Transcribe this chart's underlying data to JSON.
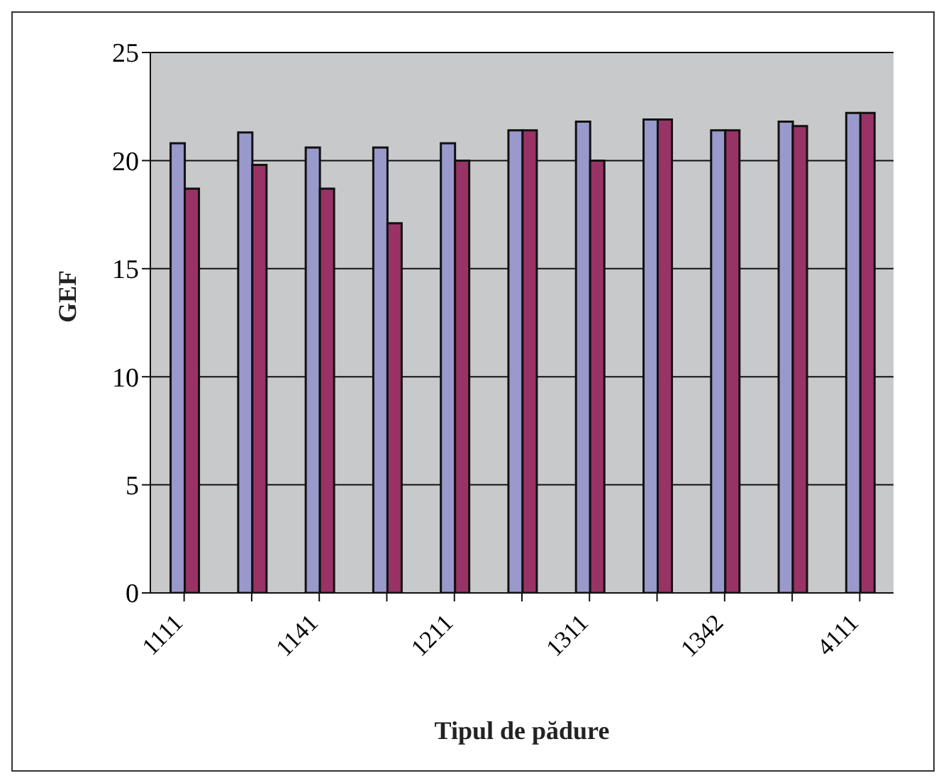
{
  "chart_data": {
    "type": "bar",
    "xlabel": "Tipul de pădure",
    "ylabel": "GEF",
    "categories": [
      "1111",
      null,
      "1141",
      null,
      "1211",
      null,
      "1311",
      null,
      "1342",
      null,
      "4111"
    ],
    "series": [
      {
        "color": "#9999cc",
        "values": [
          20.8,
          21.3,
          20.6,
          20.6,
          20.8,
          21.4,
          21.8,
          21.9,
          21.4,
          21.8,
          22.2
        ]
      },
      {
        "color": "#993366",
        "values": [
          18.7,
          19.8,
          18.7,
          17.1,
          20.0,
          21.4,
          20.0,
          21.9,
          21.4,
          21.6,
          22.2
        ]
      }
    ],
    "ylim": [
      0,
      25
    ],
    "yticks": [
      0,
      5,
      10,
      15,
      20,
      25
    ],
    "grid": "y",
    "legend": false
  }
}
